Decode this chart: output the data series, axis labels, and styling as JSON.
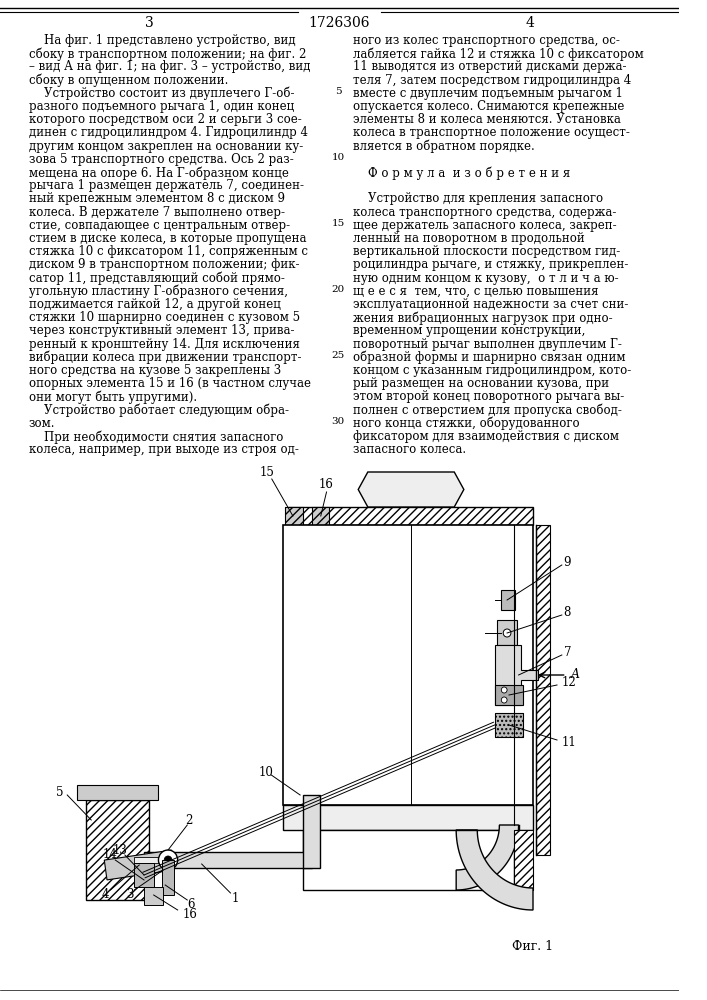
{
  "page_number_left": "3",
  "patent_number": "1726306",
  "page_number_right": "4",
  "left_column_text": [
    "    На фиг. 1 представлено устройство, вид",
    "сбоку в транспортном положении; на фиг. 2",
    "– вид А на фиг. 1; на фиг. 3 – устройство, вид",
    "сбоку в опущенном положении.",
    "    Устройство состоит из двуплечего Г-об-",
    "разного подъемного рычага 1, один конец",
    "которого посредством оси 2 и серьги 3 сое-",
    "динен с гидроцилиндром 4. Гидроцилиндр 4",
    "другим концом закреплен на основании ку-",
    "зова 5 транспортного средства. Ось 2 раз-",
    "мещена на опоре 6. На Г-образном конце",
    "рычага 1 размещен держатель 7, соединен-",
    "ный крепежным элементом 8 с диском 9",
    "колеса. В держателе 7 выполнено отвер-",
    "стие, совпадающее с центральным отвер-",
    "стием в диске колеса, в которые пропущена",
    "стяжка 10 с фиксатором 11, сопряженным с",
    "диском 9 в транспортном положении; фик-",
    "сатор 11, представляющий собой прямо-",
    "угольную пластину Г-образного сечения,",
    "поджимается гайкой 12, а другой конец",
    "стяжки 10 шарнирно соединен с кузовом 5",
    "через конструктивный элемент 13, прива-",
    "ренный к кронштейну 14. Для исключения",
    "вибрации колеса при движении транспорт-",
    "ного средства на кузове 5 закреплены 3",
    "опорных элемента 15 и 16 (в частном случае",
    "они могут быть упругими).",
    "    Устройство работает следующим обра-",
    "зом.",
    "    При необходимости снятия запасного",
    "колеса, например, при выходе из строя од-"
  ],
  "right_column_text": [
    "ного из колес транспортного средства, ос-",
    "лабляется гайка 12 и стяжка 10 с фиксатором",
    "11 выводятся из отверстий дисками держа-",
    "теля 7, затем посредством гидроцилиндра 4",
    "вместе с двуплечим подъемным рычагом 1",
    "опускается колесо. Снимаются крепежные",
    "элементы 8 и колеса меняются. Установка",
    "колеса в транспортное положение осущест-",
    "вляется в обратном порядке.",
    "",
    "    Ф о р м у л а  и з о б р е т е н и я",
    "",
    "    Устройство для крепления запасного",
    "колеса транспортного средства, содержа-",
    "щее держатель запасного колеса, закреп-",
    "ленный на поворотном в продольной",
    "вертикальной плоскости посредством гид-",
    "роцилиндра рычаге, и стяжку, прикреплен-",
    "ную одним концом к кузову,  о т л и ч а ю-",
    "щ е е с я  тем, что, с целью повышения",
    "эксплуатационной надежности за счет сни-",
    "жения вибрационных нагрузок при одно-",
    "временном упрощении конструкции,",
    "поворотный рычаг выполнен двуплечим Г-",
    "образной формы и шарнирно связан одним",
    "концом с указанным гидроцилиндром, кото-",
    "рый размещен на основании кузова, при",
    "этом второй конец поворотного рычага вы-",
    "полнен с отверстием для пропуска свобод-",
    "ного конца стяжки, оборудованного",
    "фиксатором для взаимодействия с диском",
    "запасного колеса."
  ],
  "figure_caption": "Фиг. 1",
  "font_size": 8.5,
  "header_font_size": 10,
  "background_color": "#ffffff",
  "text_color": "#000000",
  "line_color": "#000000"
}
